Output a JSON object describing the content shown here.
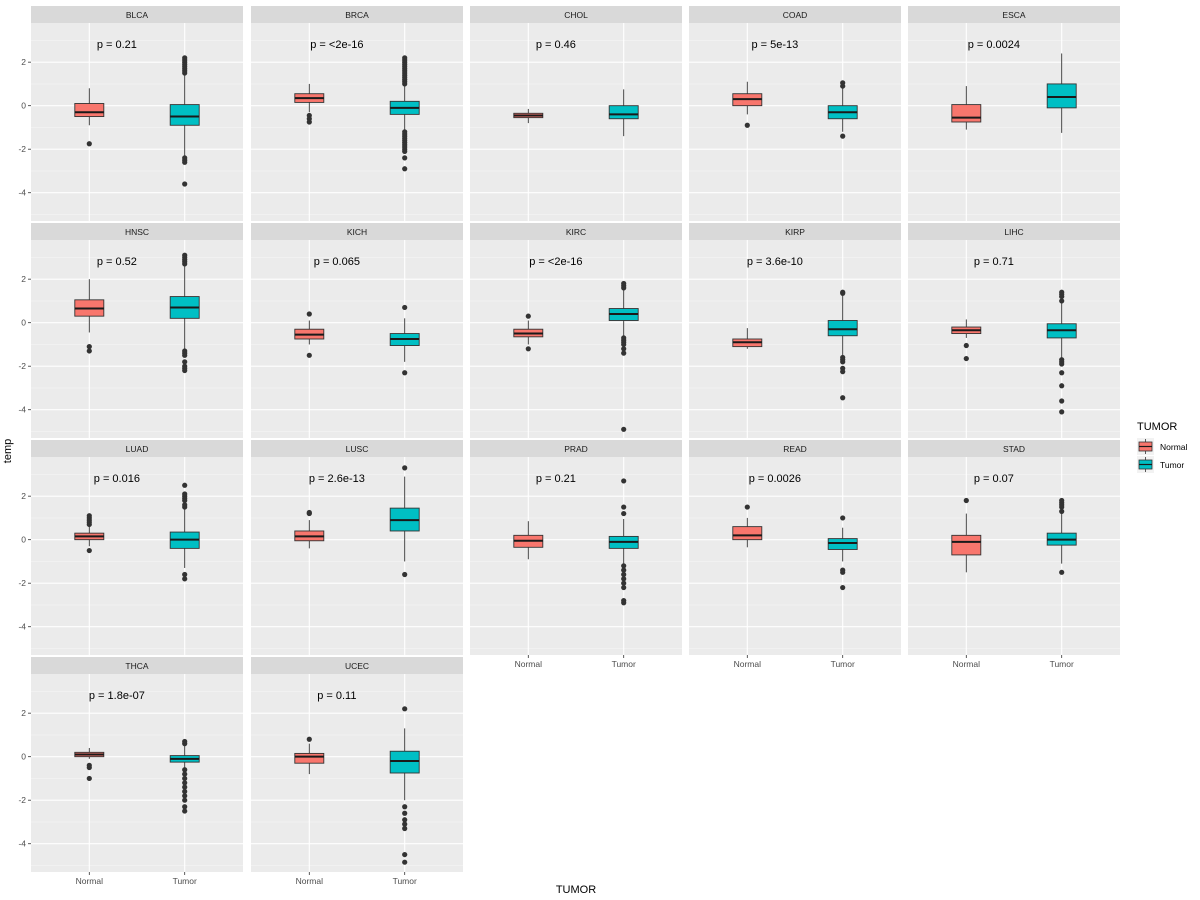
{
  "chart_data": {
    "type": "boxplot",
    "xlabel": "TUMOR",
    "ylabel": "temp",
    "ylim": [
      -5.3,
      3.8
    ],
    "yticks": [
      2,
      0,
      -2,
      -4
    ],
    "categories": [
      "Normal",
      "Tumor"
    ],
    "legend": {
      "title": "TUMOR",
      "position": "right",
      "items": [
        {
          "label": "Normal",
          "color": "#F8766D"
        },
        {
          "label": "Tumor",
          "color": "#00BFC4"
        }
      ]
    },
    "panels": [
      {
        "name": "BLCA",
        "p": "p = 0.21",
        "normal": {
          "q1": -0.5,
          "med": -0.3,
          "q3": 0.1,
          "lo": -0.9,
          "hi": 0.8,
          "out": [
            -1.75
          ]
        },
        "tumor": {
          "q1": -0.9,
          "med": -0.5,
          "q3": 0.05,
          "lo": -2.3,
          "hi": 1.4,
          "out": [
            1.5,
            1.6,
            1.7,
            1.8,
            1.9,
            2.0,
            2.1,
            2.2,
            -2.4,
            -2.5,
            -2.6,
            -3.6
          ]
        }
      },
      {
        "name": "BRCA",
        "p": "p = <2e-16",
        "normal": {
          "q1": 0.15,
          "med": 0.35,
          "q3": 0.55,
          "lo": -0.3,
          "hi": 1.0,
          "out": [
            -0.45,
            -0.6,
            -0.75
          ]
        },
        "tumor": {
          "q1": -0.4,
          "med": -0.1,
          "q3": 0.2,
          "lo": -1.1,
          "hi": 0.9,
          "out": [
            1.0,
            1.1,
            1.2,
            1.3,
            1.4,
            1.5,
            1.6,
            1.7,
            1.8,
            1.9,
            2.0,
            2.1,
            2.2,
            -1.2,
            -1.3,
            -1.4,
            -1.5,
            -1.6,
            -1.7,
            -1.8,
            -1.9,
            -2.0,
            -2.1,
            -2.4,
            -2.9
          ]
        }
      },
      {
        "name": "CHOL",
        "p": "p = 0.46",
        "normal": {
          "q1": -0.55,
          "med": -0.45,
          "q3": -0.35,
          "lo": -0.8,
          "hi": -0.15,
          "out": []
        },
        "tumor": {
          "q1": -0.6,
          "med": -0.4,
          "q3": 0.0,
          "lo": -1.4,
          "hi": 0.75,
          "out": []
        }
      },
      {
        "name": "COAD",
        "p": "p = 5e-13",
        "normal": {
          "q1": 0.0,
          "med": 0.3,
          "q3": 0.55,
          "lo": -0.4,
          "hi": 1.1,
          "out": [
            -0.9
          ]
        },
        "tumor": {
          "q1": -0.6,
          "med": -0.3,
          "q3": 0.0,
          "lo": -1.2,
          "hi": 0.8,
          "out": [
            1.05,
            0.9,
            -1.4
          ]
        }
      },
      {
        "name": "ESCA",
        "p": "p = 0.0024",
        "normal": {
          "q1": -0.75,
          "med": -0.55,
          "q3": 0.05,
          "lo": -1.1,
          "hi": 0.9,
          "out": []
        },
        "tumor": {
          "q1": -0.1,
          "med": 0.4,
          "q3": 1.0,
          "lo": -1.25,
          "hi": 2.4,
          "out": []
        }
      },
      {
        "name": "HNSC",
        "p": "p = 0.52",
        "normal": {
          "q1": 0.3,
          "med": 0.65,
          "q3": 1.05,
          "lo": -0.45,
          "hi": 2.0,
          "out": [
            -1.1,
            -1.3
          ]
        },
        "tumor": {
          "q1": 0.2,
          "med": 0.7,
          "q3": 1.2,
          "lo": -1.2,
          "hi": 2.6,
          "out": [
            2.7,
            2.8,
            2.9,
            3.0,
            3.1,
            -1.3,
            -1.4,
            -1.5,
            -1.8,
            -2.0,
            -2.1,
            -2.2
          ]
        }
      },
      {
        "name": "KICH",
        "p": "p = 0.065",
        "normal": {
          "q1": -0.75,
          "med": -0.55,
          "q3": -0.3,
          "lo": -1.0,
          "hi": 0.1,
          "out": [
            0.4,
            -1.5
          ]
        },
        "tumor": {
          "q1": -1.05,
          "med": -0.75,
          "q3": -0.5,
          "lo": -1.8,
          "hi": 0.2,
          "out": [
            0.7,
            -2.3
          ]
        }
      },
      {
        "name": "KIRC",
        "p": "p = <2e-16",
        "normal": {
          "q1": -0.65,
          "med": -0.5,
          "q3": -0.3,
          "lo": -1.0,
          "hi": 0.1,
          "out": [
            0.3,
            -1.2
          ]
        },
        "tumor": {
          "q1": 0.1,
          "med": 0.4,
          "q3": 0.65,
          "lo": -0.6,
          "hi": 1.5,
          "out": [
            1.6,
            1.7,
            1.8,
            -0.7,
            -0.8,
            -0.9,
            -1.0,
            -1.2,
            -1.4,
            -4.9
          ]
        }
      },
      {
        "name": "KIRP",
        "p": "p = 3.6e-10",
        "normal": {
          "q1": -1.1,
          "med": -0.9,
          "q3": -0.75,
          "lo": -1.2,
          "hi": -0.25,
          "out": []
        },
        "tumor": {
          "q1": -0.6,
          "med": -0.3,
          "q3": 0.1,
          "lo": -1.5,
          "hi": 1.3,
          "out": [
            1.35,
            1.4,
            -1.6,
            -1.7,
            -1.8,
            -2.1,
            -2.25,
            -3.45
          ]
        }
      },
      {
        "name": "LIHC",
        "p": "p = 0.71",
        "normal": {
          "q1": -0.5,
          "med": -0.35,
          "q3": -0.2,
          "lo": -0.7,
          "hi": 0.15,
          "out": [
            -1.05,
            -1.65
          ]
        },
        "tumor": {
          "q1": -0.7,
          "med": -0.35,
          "q3": -0.05,
          "lo": -1.6,
          "hi": 0.9,
          "out": [
            1.0,
            1.2,
            1.3,
            1.4,
            -1.7,
            -1.8,
            -1.9,
            -2.3,
            -2.9,
            -3.6,
            -4.1
          ]
        }
      },
      {
        "name": "LUAD",
        "p": "p = 0.016",
        "normal": {
          "q1": 0.0,
          "med": 0.15,
          "q3": 0.3,
          "lo": -0.3,
          "hi": 0.6,
          "out": [
            0.7,
            0.8,
            0.9,
            1.0,
            1.1,
            -0.5
          ]
        },
        "tumor": {
          "q1": -0.4,
          "med": 0.0,
          "q3": 0.35,
          "lo": -1.3,
          "hi": 1.4,
          "out": [
            1.5,
            1.6,
            1.8,
            1.9,
            2.0,
            2.1,
            2.5,
            -1.6,
            -1.8
          ]
        }
      },
      {
        "name": "LUSC",
        "p": "p = 2.6e-13",
        "normal": {
          "q1": -0.05,
          "med": 0.15,
          "q3": 0.4,
          "lo": -0.4,
          "hi": 0.9,
          "out": [
            1.2,
            1.25
          ]
        },
        "tumor": {
          "q1": 0.4,
          "med": 0.9,
          "q3": 1.45,
          "lo": -1.0,
          "hi": 2.9,
          "out": [
            3.3,
            -1.6
          ]
        }
      },
      {
        "name": "PRAD",
        "p": "p = 0.21",
        "normal": {
          "q1": -0.35,
          "med": -0.05,
          "q3": 0.2,
          "lo": -0.9,
          "hi": 0.85,
          "out": []
        },
        "tumor": {
          "q1": -0.4,
          "med": -0.1,
          "q3": 0.15,
          "lo": -1.1,
          "hi": 0.95,
          "out": [
            1.2,
            1.5,
            2.7,
            -1.2,
            -1.4,
            -1.6,
            -1.8,
            -2.0,
            -2.2,
            -2.8,
            -2.9
          ]
        }
      },
      {
        "name": "READ",
        "p": "p = 0.0026",
        "normal": {
          "q1": 0.0,
          "med": 0.2,
          "q3": 0.6,
          "lo": -0.35,
          "hi": 1.0,
          "out": [
            1.5
          ]
        },
        "tumor": {
          "q1": -0.45,
          "med": -0.15,
          "q3": 0.05,
          "lo": -1.0,
          "hi": 0.55,
          "out": [
            1.0,
            -1.4,
            -1.5,
            -2.2
          ]
        }
      },
      {
        "name": "STAD",
        "p": "p = 0.07",
        "normal": {
          "q1": -0.7,
          "med": -0.1,
          "q3": 0.2,
          "lo": -1.5,
          "hi": 1.2,
          "out": [
            1.8
          ]
        },
        "tumor": {
          "q1": -0.25,
          "med": 0.0,
          "q3": 0.3,
          "lo": -1.1,
          "hi": 1.2,
          "out": [
            1.3,
            1.5,
            1.6,
            1.7,
            1.8,
            -1.5
          ]
        }
      },
      {
        "name": "THCA",
        "p": "p = 1.8e-07",
        "normal": {
          "q1": 0.0,
          "med": 0.1,
          "q3": 0.2,
          "lo": -0.1,
          "hi": 0.4,
          "out": [
            -0.4,
            -0.5,
            -1.0
          ]
        },
        "tumor": {
          "q1": -0.25,
          "med": -0.1,
          "q3": 0.05,
          "lo": -0.5,
          "hi": 0.5,
          "out": [
            0.6,
            0.7,
            -0.6,
            -0.8,
            -1.0,
            -1.2,
            -1.4,
            -1.6,
            -1.8,
            -2.0,
            -2.3,
            -2.5
          ]
        }
      },
      {
        "name": "UCEC",
        "p": "p = 0.11",
        "normal": {
          "q1": -0.3,
          "med": 0.0,
          "q3": 0.15,
          "lo": -0.8,
          "hi": 0.6,
          "out": [
            0.8
          ]
        },
        "tumor": {
          "q1": -0.75,
          "med": -0.2,
          "q3": 0.25,
          "lo": -2.0,
          "hi": 1.3,
          "out": [
            2.2,
            -2.3,
            -2.6,
            -2.9,
            -3.1,
            -3.3,
            -4.5,
            -4.85
          ]
        }
      }
    ]
  }
}
